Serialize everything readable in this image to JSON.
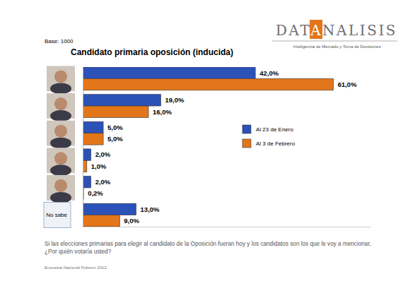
{
  "chart_data": {
    "type": "bar",
    "orientation": "horizontal",
    "title": "Candidato primaria oposición (inducida)",
    "annotations": [
      "Base: 1000",
      "DATANALISIS",
      "Inteligencia de Mercado y Toma de Decisiones",
      "Si las elecciones primarias para elegir al candidato de la Oposición fueran hoy y los candidatos son los que le voy a mencionar,",
      "¿Por quién votaría usted?",
      "Encuesta Nacional Febrero 2012"
    ],
    "categories": [
      null,
      null,
      null,
      null,
      null,
      "No sabe"
    ],
    "series": [
      {
        "name": "Al 23 de Enero",
        "color": "#2c52b8",
        "values": [
          42,
          19,
          5,
          2,
          2,
          13
        ],
        "value_labels": [
          "42,0%",
          "19,0%",
          "5,0%",
          "2,0%",
          "2,0%",
          "13,0%"
        ]
      },
      {
        "name": "Al 3 de Febrero",
        "color": "#e3761a",
        "values": [
          61,
          16,
          5,
          1,
          0.2,
          9
        ],
        "value_labels": [
          "61,0%",
          "16,0%",
          "5,0%",
          "1,0%",
          "0,2%",
          "9,0%"
        ]
      }
    ],
    "xlim": [
      0,
      70
    ],
    "data_labels": true,
    "tick_labels": "y",
    "legend": "right"
  }
}
